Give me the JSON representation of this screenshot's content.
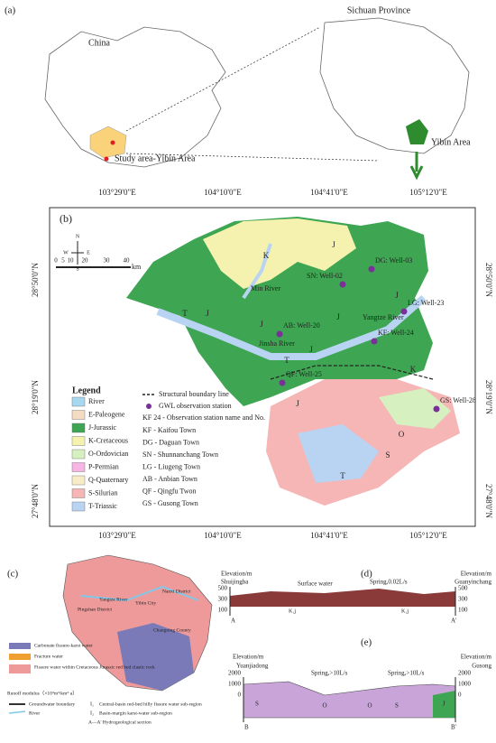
{
  "panel_a": {
    "label": "(a)",
    "china": "China",
    "province": "Sichuan Province",
    "area": "Yibin Area",
    "study_area": "Study area-Yibin Area"
  },
  "panel_b": {
    "label": "(b)",
    "longitudes": [
      "103°29'0\"E",
      "104°10'0\"E",
      "104°41'0\"E",
      "105°12'0\"E"
    ],
    "latitudes": [
      "28°50'0\"N",
      "28°19'0\"N",
      "27°48'0\"N"
    ],
    "compass": [
      "N",
      "E",
      "S",
      "W"
    ],
    "scale": {
      "ticks": [
        0,
        5,
        10,
        20,
        30,
        40
      ],
      "unit": "km"
    },
    "units": [
      "K",
      "J",
      "J",
      "J",
      "J",
      "J",
      "J",
      "T",
      "T",
      "J",
      "K",
      "O",
      "S",
      "T"
    ],
    "rivers": [
      "Min River",
      "Yangtze River",
      "Jinsha River"
    ],
    "stations": [
      "SN: Well-02",
      "DG: Well-03",
      "LG: Well-23",
      "AB: Well-20",
      "KF: Well-24",
      "QF: Well-25",
      "GS: Well-28"
    ],
    "legend": {
      "title": "Legend",
      "items": [
        {
          "name": "River",
          "color": "#a8d8f0"
        },
        {
          "name": "E-Paleogene",
          "color": "#f3dcc2"
        },
        {
          "name": "J-Jurassic",
          "color": "#3ea652"
        },
        {
          "name": "K-Cretaceous",
          "color": "#f5f2b0"
        },
        {
          "name": "O-Ordovician",
          "color": "#d6f0c0"
        },
        {
          "name": "P-Permian",
          "color": "#f7b5e3"
        },
        {
          "name": "Q-Quaternary",
          "color": "#f8ecc6"
        },
        {
          "name": "S-Silurian",
          "color": "#f6b6b6"
        },
        {
          "name": "T-Triassic",
          "color": "#b8d4f2"
        }
      ]
    },
    "key": {
      "boundary": "Structural boundary  line",
      "station": "GWL observation station",
      "station_key": "KF 24 - Observation station name and No.",
      "towns": [
        "KF - Kaifou Town",
        "DG - Daguan Town",
        "SN - Shunnanchang Town",
        "LG - Liugeng Town",
        "AB - Anbian Town",
        "QF - Qingfu Twon",
        "GS - Gusong Town"
      ]
    }
  },
  "panel_c": {
    "label": "(c)",
    "places": [
      "Yangtze River",
      "Yibin City",
      "Pingshan District",
      "Nanxi District",
      "Changning County"
    ],
    "legend": [
      "Carbonate fissure-karst water",
      "Fracture water",
      "Fissure water within Cretaceous Jurassic red bed clastic rock"
    ],
    "runoff": "Runoff modulus（×10⁴m³/km²·a）",
    "boundary": "Groundwater boundary",
    "river": "River",
    "subregions": [
      {
        "code": "I₁",
        "text": "Central-basin red-bed hilly fissure water sub-region"
      },
      {
        "code": "I₂",
        "text": "Basin-margin karst-water sub-region"
      }
    ],
    "section": "A—A' Hydrogeological section"
  },
  "panel_d": {
    "label": "(d)",
    "axis_title": "Elevation/m",
    "left": "Shuijingba",
    "right": "Guanyinchang",
    "surface_water": "Surface water",
    "spring": "Spring,0.02L/s",
    "ticks": [
      500,
      300,
      100
    ],
    "ends": [
      "A",
      "A'"
    ],
    "strata": [
      "K₁j",
      "K₁j"
    ]
  },
  "panel_e": {
    "label": "(e)",
    "axis_title": "Elevation/m",
    "left": "Yuanjiadong",
    "right": "Gusong",
    "springs": [
      "Spring,>10L/s",
      "Spring,>10L/s"
    ],
    "ticks": [
      2000,
      1000,
      0
    ],
    "ends": [
      "B",
      "B'"
    ],
    "strata": [
      "S",
      "O",
      "O",
      "S",
      "J"
    ]
  }
}
